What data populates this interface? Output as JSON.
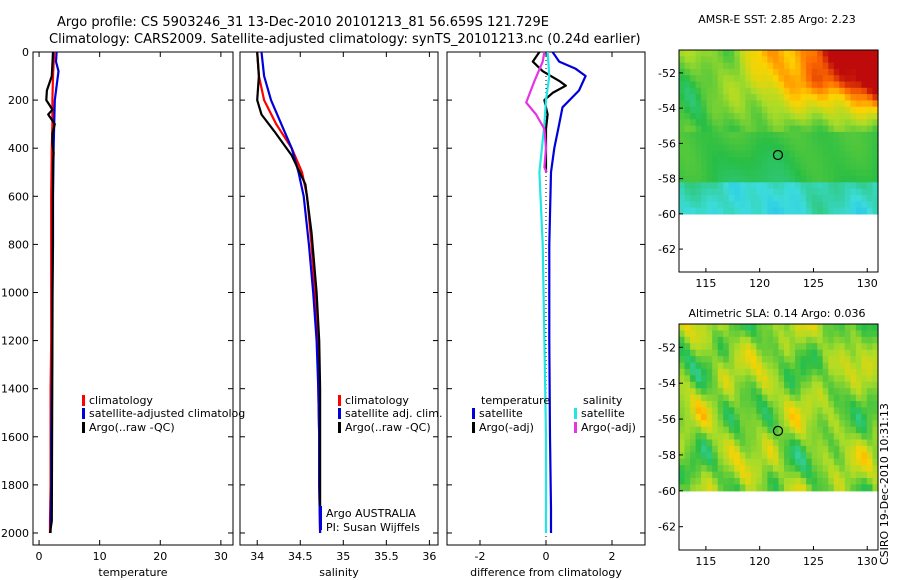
{
  "title_line1": "Argo profile: CS 5903246_31 13-Dec-2010 20101213_81 56.659S 121.729E",
  "title_line2": "Climatology: CARS2009. Satellite-adjusted climatology: synTS_20101213.nc (0.24d earlier)",
  "side_label": "CSIRO 19-Dec-2010 10:31:13",
  "colors": {
    "red": "#ff0000",
    "blue": "#0000dd",
    "black": "#000000",
    "cyan": "#22e6e6",
    "magenta": "#e633e6"
  },
  "chart_data": [
    {
      "type": "line",
      "name": "temperature-panel",
      "xlabel": "temperature",
      "xlim": [
        -1,
        32
      ],
      "ylim": [
        2050,
        0
      ],
      "xticks": [
        0,
        10,
        20,
        30
      ],
      "yticks": [
        0,
        200,
        400,
        600,
        800,
        1000,
        1200,
        1400,
        1600,
        1800,
        2000
      ],
      "series": [
        {
          "name": "climatology",
          "color": "#ff0000",
          "x": [
            2.5,
            2.4,
            2.3,
            2.2,
            2.2,
            2.1,
            2.0,
            2.0,
            2.0,
            2.0,
            1.9,
            1.9,
            1.9,
            1.8,
            1.8
          ],
          "y": [
            0,
            50,
            100,
            200,
            300,
            400,
            600,
            800,
            1000,
            1200,
            1400,
            1600,
            1800,
            1950,
            2000
          ]
        },
        {
          "name": "satellite-adjusted climatology",
          "color": "#0000dd",
          "x": [
            2.9,
            2.8,
            3.2,
            2.6,
            2.5,
            2.4,
            2.3,
            2.3,
            2.2,
            2.2,
            2.1,
            2.0,
            2.0,
            1.9,
            1.9
          ],
          "y": [
            0,
            40,
            80,
            200,
            300,
            400,
            600,
            800,
            1000,
            1200,
            1400,
            1600,
            1800,
            1950,
            2000
          ]
        },
        {
          "name": "Argo(..raw -QC)",
          "color": "#000000",
          "x": [
            2.3,
            2.2,
            2.1,
            1.3,
            1.2,
            1.7,
            2.2,
            1.5,
            2.6,
            2.2,
            2.2,
            2.4,
            2.3,
            2.1,
            1.8
          ],
          "y": [
            0,
            50,
            100,
            160,
            200,
            220,
            240,
            260,
            300,
            340,
            380,
            420,
            460,
            1950,
            2000
          ]
        }
      ],
      "legend": [
        "climatology",
        "satellite-adjusted climatolog",
        "Argo(..raw -QC)"
      ]
    },
    {
      "type": "line",
      "name": "salinity-panel",
      "xlabel": "salinity",
      "xlim": [
        33.8,
        36.1
      ],
      "ylim": [
        2050,
        0
      ],
      "xticks": [
        34,
        34.5,
        35,
        35.5,
        36
      ],
      "series": [
        {
          "name": "climatology",
          "color": "#ff0000",
          "x": [
            34.0,
            34.02,
            34.08,
            34.22,
            34.4,
            34.52,
            34.58,
            34.63,
            34.67,
            34.7,
            34.71,
            34.72,
            34.72,
            34.73
          ],
          "y": [
            0,
            100,
            200,
            300,
            400,
            500,
            600,
            800,
            1000,
            1200,
            1400,
            1600,
            1800,
            2000
          ]
        },
        {
          "name": "satellite adj. clim.",
          "color": "#0000dd",
          "x": [
            34.05,
            34.08,
            34.16,
            34.28,
            34.4,
            34.48,
            34.54,
            34.6,
            34.65,
            34.69,
            34.71,
            34.72,
            34.72,
            34.73
          ],
          "y": [
            0,
            100,
            200,
            300,
            400,
            500,
            600,
            800,
            1000,
            1200,
            1400,
            1600,
            1800,
            2000
          ]
        },
        {
          "name": "Argo(..raw -QC)",
          "color": "#000000",
          "x": [
            34.0,
            34.02,
            34.0,
            34.05,
            34.2,
            34.4,
            34.56,
            34.63,
            34.69,
            34.72,
            34.73,
            34.73,
            34.73
          ],
          "y": [
            0,
            100,
            200,
            260,
            330,
            430,
            550,
            750,
            1000,
            1200,
            1400,
            1600,
            1950
          ]
        }
      ],
      "legend": [
        "climatology",
        "satellite adj. clim.",
        "Argo(..raw -QC)"
      ],
      "annotation": [
        "Argo AUSTRALIA",
        "PI: Susan Wijffels"
      ]
    },
    {
      "type": "line",
      "name": "difference-panel",
      "xlabel": "difference from climatology",
      "xlim": [
        -3,
        3
      ],
      "ylim": [
        2050,
        0
      ],
      "xticks": [
        -2,
        0,
        2
      ],
      "series": [
        {
          "name": "temperature satellite",
          "color": "#0000dd",
          "x": [
            0.2,
            0.4,
            0.9,
            1.2,
            1.0,
            0.5,
            0.4,
            0.25,
            0.15,
            0.1,
            0.1,
            0.12,
            0.15,
            0.15
          ],
          "y": [
            0,
            40,
            70,
            100,
            160,
            230,
            300,
            400,
            500,
            800,
            1200,
            1600,
            1900,
            2000
          ]
        },
        {
          "name": "temperature Argo(-adj)",
          "color": "#000000",
          "x": [
            -0.2,
            -0.4,
            -0.1,
            0.4,
            0.6,
            0.2,
            -0.05,
            0.05,
            0.0,
            0.0,
            0.0
          ],
          "y": [
            0,
            40,
            80,
            120,
            140,
            170,
            200,
            260,
            320,
            450,
            500
          ]
        },
        {
          "name": "salinity satellite",
          "color": "#22e6e6",
          "x": [
            0.05,
            0.1,
            0.0,
            -0.05,
            -0.2,
            -0.1,
            -0.05,
            0.0,
            0.0,
            0.0
          ],
          "y": [
            0,
            100,
            200,
            300,
            500,
            800,
            1200,
            1600,
            1900,
            2000
          ]
        },
        {
          "name": "salinity Argo(-adj)",
          "color": "#e633e6",
          "x": [
            -0.05,
            -0.1,
            -0.35,
            -0.6,
            -0.3,
            -0.05,
            0.0,
            -0.05,
            0.02
          ],
          "y": [
            0,
            40,
            120,
            210,
            260,
            320,
            400,
            480,
            500
          ]
        }
      ],
      "legend_headers": [
        "temperature",
        "salinity"
      ],
      "legend": [
        "satellite",
        "Argo(-adj)",
        "satellite",
        "Argo(-adj)"
      ]
    },
    {
      "type": "heatmap",
      "name": "sst-map",
      "title": "AMSR-E SST: 2.85 Argo: 2.23",
      "xlim": [
        112.5,
        131
      ],
      "ylim": [
        -63.3,
        -50.7
      ],
      "xticks": [
        115,
        120,
        125,
        130
      ],
      "yticks": [
        -52,
        -54,
        -56,
        -58,
        -60,
        -62
      ],
      "marker": [
        121.7,
        -56.66
      ]
    },
    {
      "type": "heatmap",
      "name": "sla-map",
      "title": "Altimetric SLA: 0.14 Argo: 0.036",
      "xlim": [
        112.5,
        131
      ],
      "ylim": [
        -63.3,
        -50.7
      ],
      "xticks": [
        115,
        120,
        125,
        130
      ],
      "yticks": [
        -52,
        -54,
        -56,
        -58,
        -60,
        -62
      ],
      "marker": [
        121.7,
        -56.66
      ]
    }
  ]
}
